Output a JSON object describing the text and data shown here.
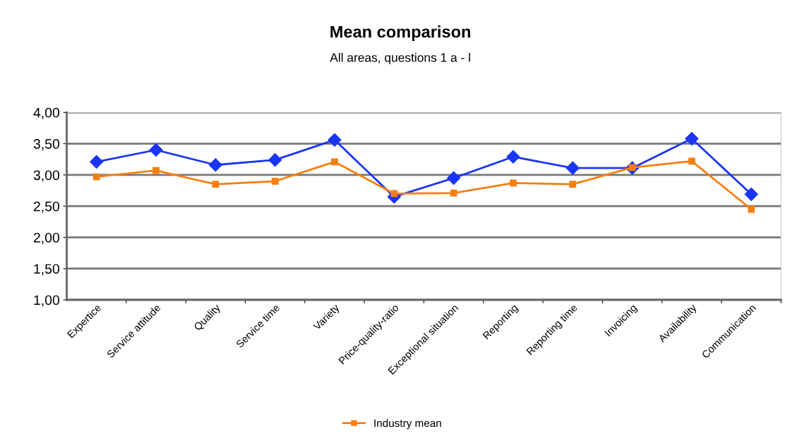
{
  "chart_data": {
    "type": "line",
    "title": "Mean comparison",
    "subtitle": "All areas, questions 1 a - l",
    "categories": [
      "Expertice",
      "Service attitude",
      "Quality",
      "Service time",
      "Variety",
      "Price-quality-ratio",
      "Exceptional situation",
      "Reporting",
      "Reporting time",
      "Invoicing",
      "Availability",
      "Communication"
    ],
    "series": [
      {
        "color": "#1a35f5",
        "marker": "diamond",
        "values": [
          3.21,
          3.4,
          3.16,
          3.24,
          3.56,
          2.65,
          2.95,
          3.29,
          3.11,
          3.11,
          3.58,
          2.69
        ]
      },
      {
        "name": "Industry mean",
        "color": "#f77f0f",
        "marker": "square",
        "values": [
          2.97,
          3.07,
          2.85,
          2.9,
          3.21,
          2.7,
          2.71,
          2.87,
          2.85,
          3.12,
          3.22,
          2.45
        ]
      }
    ],
    "ylim": [
      1,
      4
    ],
    "yticks": [
      {
        "value": 1,
        "label": "1,00"
      },
      {
        "value": 1.5,
        "label": "1,50"
      },
      {
        "value": 2,
        "label": "2,00"
      },
      {
        "value": 2.5,
        "label": "2,50"
      },
      {
        "value": 3,
        "label": "3,00"
      },
      {
        "value": 3.5,
        "label": "3,50"
      },
      {
        "value": 4,
        "label": "4,00"
      }
    ],
    "grid": "y",
    "legend": "bottom",
    "line_style": "solid"
  }
}
